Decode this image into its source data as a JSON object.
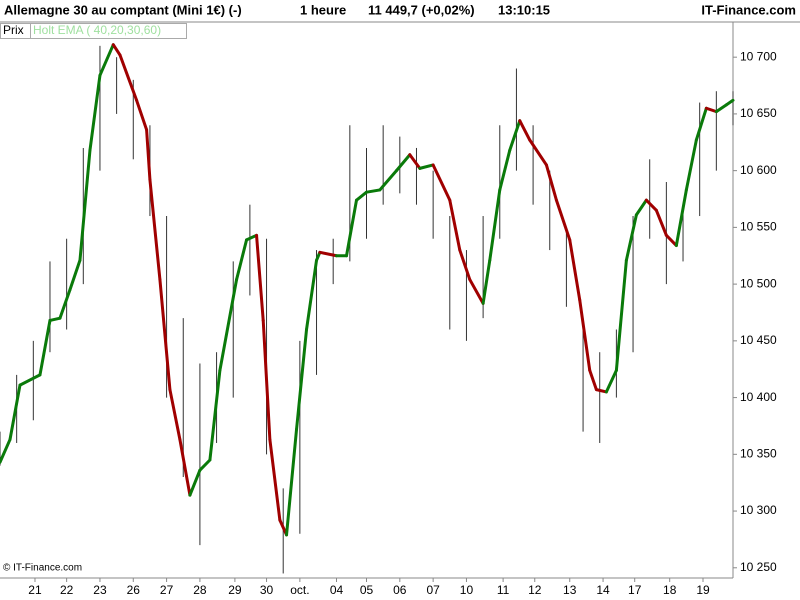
{
  "header": {
    "instrument": "Allemagne 30 au comptant (Mini 1€) (-)",
    "period": "1 heure",
    "quote": "11 449,7 (+0,02%)",
    "time": "13:10:15",
    "site": "IT-Finance.com"
  },
  "legend": {
    "price": "Prix",
    "indicator": "Holt EMA ( 40,20,30,60)"
  },
  "copyright": "© IT-Finance.com",
  "chart_data": {
    "type": "line",
    "xlim": [
      0,
      220
    ],
    "ylim": [
      10241,
      10731
    ],
    "xticks": [
      {
        "value": 10.5,
        "label": "21"
      },
      {
        "value": 20,
        "label": "22"
      },
      {
        "value": 30,
        "label": "23"
      },
      {
        "value": 40,
        "label": "26"
      },
      {
        "value": 50,
        "label": "27"
      },
      {
        "value": 60,
        "label": "28"
      },
      {
        "value": 70.5,
        "label": "29"
      },
      {
        "value": 80,
        "label": "30"
      },
      {
        "value": 90,
        "label": "oct."
      },
      {
        "value": 101,
        "label": "04"
      },
      {
        "value": 110,
        "label": "05"
      },
      {
        "value": 120,
        "label": "06"
      },
      {
        "value": 130,
        "label": "07"
      },
      {
        "value": 140,
        "label": "10"
      },
      {
        "value": 151,
        "label": "11"
      },
      {
        "value": 160.5,
        "label": "12"
      },
      {
        "value": 171,
        "label": "13"
      },
      {
        "value": 181,
        "label": "14"
      },
      {
        "value": 190.5,
        "label": "17"
      },
      {
        "value": 201,
        "label": "18"
      },
      {
        "value": 211,
        "label": "19"
      }
    ],
    "yticks": [
      {
        "value": 10250,
        "label": "10 250"
      },
      {
        "value": 10300,
        "label": "10 300"
      },
      {
        "value": 10350,
        "label": "10 350"
      },
      {
        "value": 10400,
        "label": "10 400"
      },
      {
        "value": 10450,
        "label": "10 450"
      },
      {
        "value": 10500,
        "label": "10 500"
      },
      {
        "value": 10550,
        "label": "10 550"
      },
      {
        "value": 10600,
        "label": "10 600"
      },
      {
        "value": 10650,
        "label": "10 650"
      },
      {
        "value": 10700,
        "label": "10 700"
      }
    ],
    "price_bars": {
      "color": "#333333",
      "x": [
        0,
        5,
        10,
        15,
        20,
        25,
        30,
        35,
        40,
        45,
        50,
        55,
        60,
        65,
        70,
        75,
        80,
        85,
        90,
        95,
        100,
        105,
        110,
        115,
        120,
        125,
        130,
        135,
        140,
        145,
        150,
        155,
        160,
        165,
        170,
        175,
        180,
        185,
        190,
        195,
        200,
        205,
        210,
        215,
        220
      ],
      "high": [
        10370,
        10420,
        10450,
        10520,
        10540,
        10620,
        10710,
        10700,
        10680,
        10640,
        10560,
        10470,
        10430,
        10440,
        10520,
        10570,
        10540,
        10320,
        10450,
        10530,
        10540,
        10640,
        10620,
        10640,
        10630,
        10620,
        10600,
        10560,
        10530,
        10560,
        10640,
        10690,
        10640,
        10600,
        10550,
        10470,
        10440,
        10460,
        10560,
        10610,
        10590,
        10570,
        10660,
        10670,
        10670
      ],
      "low": [
        10340,
        10360,
        10380,
        10440,
        10460,
        10500,
        10600,
        10650,
        10610,
        10560,
        10400,
        10330,
        10270,
        10360,
        10400,
        10490,
        10350,
        10245,
        10280,
        10420,
        10500,
        10520,
        10540,
        10570,
        10580,
        10570,
        10540,
        10460,
        10450,
        10470,
        10540,
        10600,
        10570,
        10530,
        10480,
        10370,
        10360,
        10400,
        10440,
        10540,
        10500,
        10520,
        10560,
        10600,
        10640
      ]
    },
    "ema": {
      "up_color": "#0a7a0a",
      "down_color": "#a00000",
      "x": [
        0,
        3,
        6,
        12,
        15,
        18,
        21,
        24,
        27,
        30,
        34,
        36,
        41,
        44,
        45,
        48,
        51,
        54,
        57,
        60,
        63,
        66,
        71,
        74,
        77,
        79,
        81,
        84,
        86,
        89,
        92,
        95,
        96,
        101,
        104,
        107,
        110,
        114,
        119,
        123,
        126,
        130,
        135,
        138,
        141,
        145,
        147,
        150,
        153,
        156,
        159,
        164,
        167,
        171,
        174,
        177,
        179,
        182,
        185,
        188,
        191,
        194,
        197,
        200,
        203,
        206,
        209,
        212,
        215,
        218,
        220
      ],
      "values": [
        10343,
        10363,
        10411,
        10420,
        10468,
        10470,
        10495,
        10521,
        10618,
        10684,
        10711,
        10702,
        10662,
        10636,
        10592,
        10504,
        10407,
        10363,
        10314,
        10336,
        10345,
        10424,
        10504,
        10539,
        10543,
        10468,
        10363,
        10292,
        10279,
        10372,
        10460,
        10521,
        10528,
        10525,
        10525,
        10574,
        10581,
        10583,
        10600,
        10614,
        10602,
        10605,
        10574,
        10530,
        10504,
        10483,
        10521,
        10583,
        10618,
        10644,
        10627,
        10605,
        10574,
        10539,
        10486,
        10424,
        10407,
        10405,
        10424,
        10521,
        10561,
        10574,
        10565,
        10543,
        10534,
        10583,
        10627,
        10655,
        10652,
        10658,
        10662
      ]
    }
  }
}
